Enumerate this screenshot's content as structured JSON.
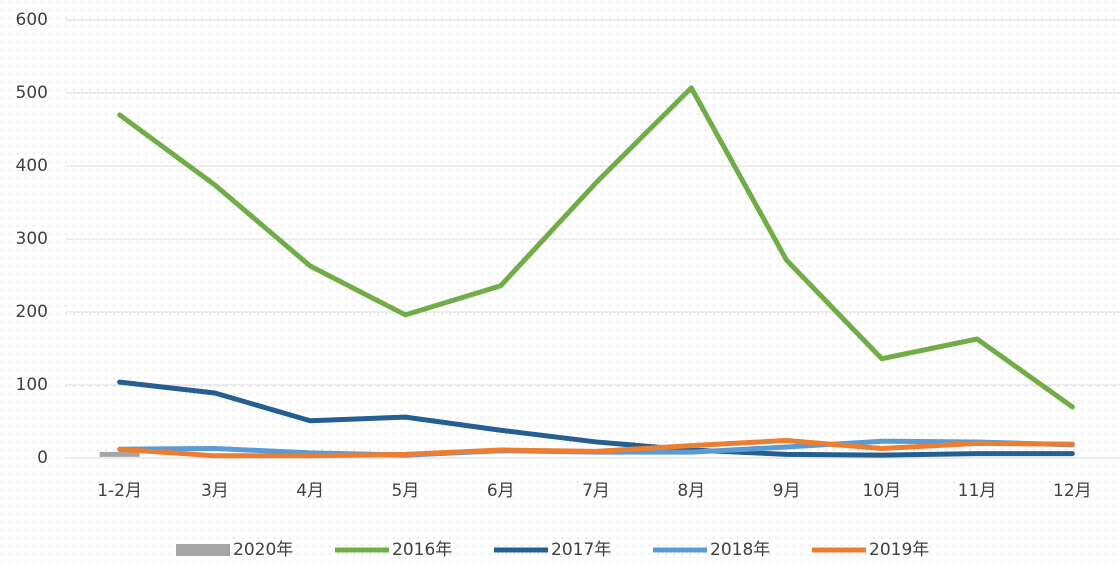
{
  "chart_data": {
    "type": "line",
    "categories": [
      "1-2月",
      "3月",
      "4月",
      "5月",
      "6月",
      "7月",
      "8月",
      "9月",
      "10月",
      "11月",
      "12月"
    ],
    "series": [
      {
        "name": "2020年",
        "color": "#a5a5a5",
        "values": [
          5,
          null,
          null,
          null,
          null,
          null,
          null,
          null,
          null,
          null,
          null
        ]
      },
      {
        "name": "2016年",
        "color": "#70ad47",
        "values": [
          470,
          374,
          263,
          196,
          236,
          377,
          507,
          271,
          136,
          163,
          70
        ]
      },
      {
        "name": "2017年",
        "color": "#255e91",
        "values": [
          104,
          89,
          51,
          56,
          38,
          22,
          11,
          5,
          4,
          6,
          6
        ]
      },
      {
        "name": "2018年",
        "color": "#5b9bd5",
        "values": [
          12,
          13,
          7,
          4,
          10,
          8,
          8,
          15,
          23,
          22,
          18
        ]
      },
      {
        "name": "2019年",
        "color": "#ed7d31",
        "values": [
          12,
          3,
          3,
          5,
          11,
          9,
          17,
          24,
          13,
          20,
          19
        ]
      }
    ],
    "ylim": [
      0,
      600
    ],
    "yticks": [
      0,
      100,
      200,
      300,
      400,
      500,
      600
    ],
    "grid": true,
    "legend": "bottom"
  }
}
